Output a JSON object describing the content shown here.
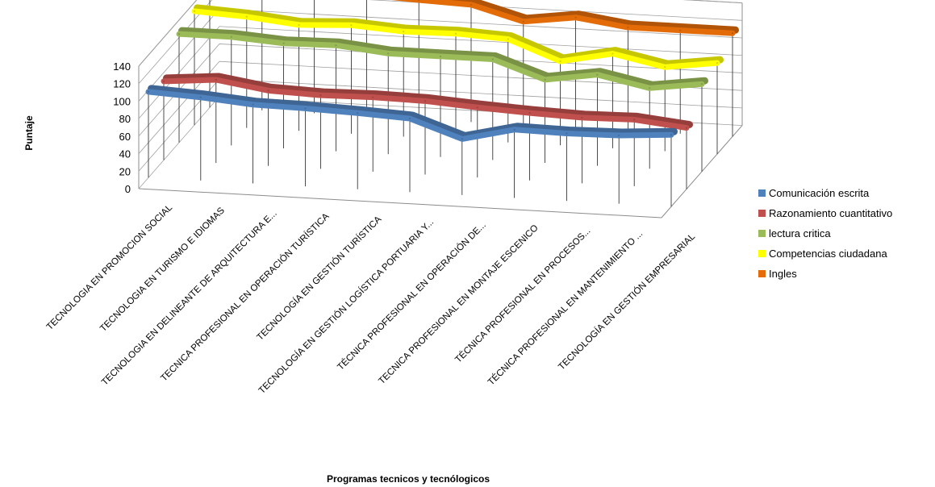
{
  "chart_data": {
    "type": "line",
    "style": "3d-ribbon",
    "xlabel": "Programas tecnicos  y tecnólogicos",
    "ylabel": "Puntaje",
    "ylim": [
      0,
      140
    ],
    "yticks": [
      0,
      20,
      40,
      60,
      80,
      100,
      120,
      140
    ],
    "grid": true,
    "legend_position": "right",
    "categories": [
      "TECNOLOGIA EN PROMOCION SOCIAL",
      "TECNOLOGIA EN TURISMO E IDIOMAS",
      "TECNOLOGIA EN DELINEANTE DE ARQUITECTURA E...",
      "TECNICA PROFESIONAL EN OPERACIÓN TURÍSTICA",
      "TECNOLOGÍA EN GESTIÓN TURÍSTICA",
      "TECNOLOGÍA EN GESTIÓN LOGÍSTICA PORTUARIA Y...",
      "TÉCNICA PROFESIONAL EN OPERACIÓN DE...",
      "TECNICA PROFESIONAL EN MONTAJE ESCENICO",
      "TÉCNICA PROFESIONAL EN PROCESOS...",
      "TÉCNICA PROFESIONAL EN MANTENIMIENTO ...",
      "TECNOLOGÍA EN GESTIÓN EMPRESARIAL"
    ],
    "series": [
      {
        "name": "Comunicación escrita",
        "color": "#4F81BD",
        "values": [
          98,
          95,
          90,
          89,
          87,
          84,
          64,
          78,
          77,
          78,
          82
        ]
      },
      {
        "name": "Razonamiento cuantitativo",
        "color": "#C0504D",
        "values": [
          90,
          95,
          86,
          84,
          85,
          84,
          80,
          77,
          75,
          76,
          70
        ]
      },
      {
        "name": "lectura critica",
        "color": "#9BBB59",
        "values": [
          124,
          124,
          120,
          121,
          115,
          115,
          115,
          95,
          104,
          92,
          100
        ]
      },
      {
        "name": "Competencias ciudadana",
        "color": "#FFFF00",
        "values": [
          130,
          127,
          121,
          124,
          120,
          121,
          118,
          96,
          108,
          96,
          104
        ]
      },
      {
        "name": "Ingles",
        "color": "#E36C09",
        "values": [
          137,
          131,
          139,
          139,
          136,
          134,
          118,
          126,
          118,
          118,
          118
        ]
      }
    ]
  }
}
